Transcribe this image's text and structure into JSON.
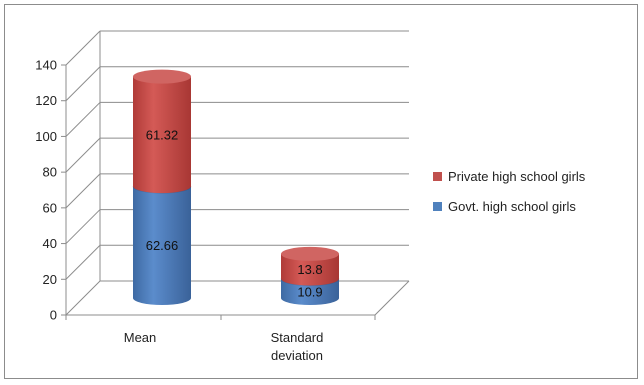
{
  "chart_data": {
    "type": "bar",
    "stacked": true,
    "style": "3d-cylinder",
    "categories": [
      "Mean",
      "Standard\ndeviation"
    ],
    "series": [
      {
        "name": "Govt. high school girls",
        "values": [
          62.66,
          10.9
        ],
        "color": "#4f81bd"
      },
      {
        "name": "Private high school girls",
        "values": [
          61.32,
          13.8
        ],
        "color": "#c0504d"
      }
    ],
    "ylim": [
      0,
      140
    ],
    "yticks": [
      0,
      20,
      40,
      60,
      80,
      100,
      120,
      140
    ],
    "grid": true,
    "legend_position": "right",
    "title": "",
    "xlabel": "",
    "ylabel": ""
  }
}
